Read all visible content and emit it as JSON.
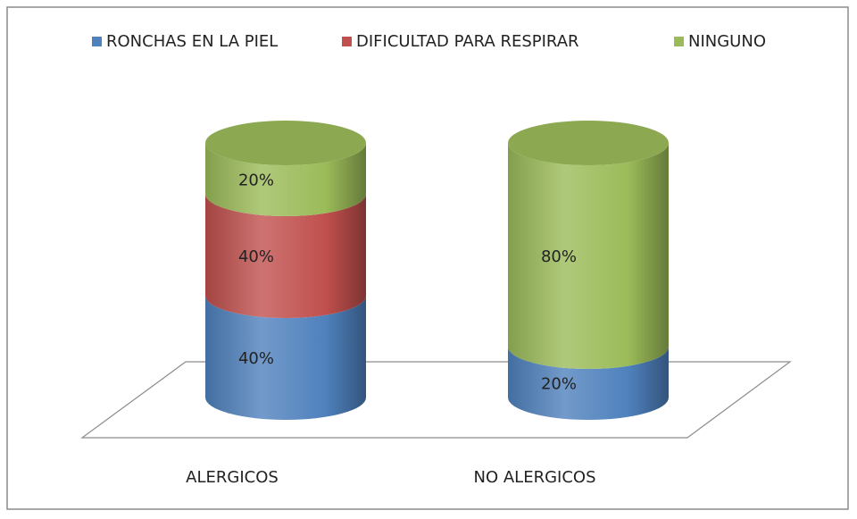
{
  "chart_data": {
    "type": "stacked-cylinder",
    "categories": [
      "ALERGICOS",
      "NO ALERGICOS"
    ],
    "series": [
      {
        "name": "RONCHAS EN LA PIEL",
        "color": "#4f81bd",
        "values": [
          40,
          20
        ],
        "value_labels": [
          "40%",
          "20%"
        ]
      },
      {
        "name": "DIFICULTAD PARA RESPIRAR",
        "color": "#c0504d",
        "values": [
          40,
          0
        ],
        "value_labels": [
          "40%",
          null
        ]
      },
      {
        "name": "NINGUNO",
        "color": "#9bbb59",
        "values": [
          20,
          80
        ],
        "value_labels": [
          "20%",
          "80%"
        ]
      }
    ],
    "legend": "top"
  }
}
